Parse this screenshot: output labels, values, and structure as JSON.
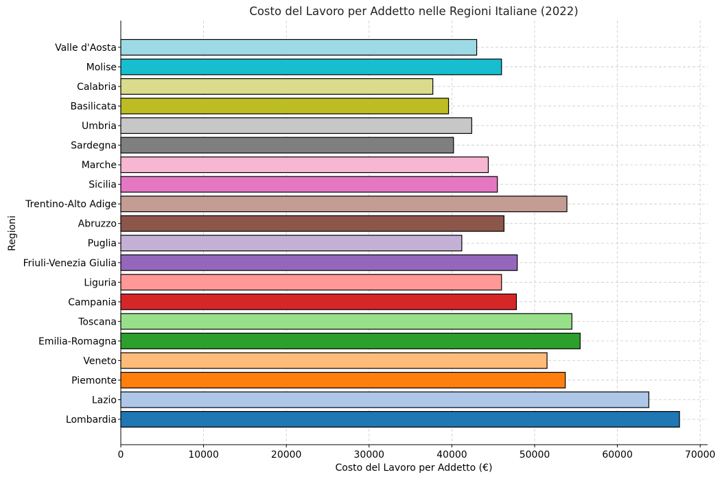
{
  "chart_data": {
    "type": "bar",
    "orientation": "horizontal",
    "title": "Costo del Lavoro per Addetto nelle Regioni Italiane (2022)",
    "xlabel": "Costo del Lavoro per Addetto (€)",
    "ylabel": "Regioni",
    "xlim": [
      0,
      71000
    ],
    "x_ticks": [
      0,
      10000,
      20000,
      30000,
      40000,
      50000,
      60000,
      70000
    ],
    "x_tick_labels": [
      "0",
      "10000",
      "20000",
      "30000",
      "40000",
      "50000",
      "60000",
      "70000"
    ],
    "grid": true,
    "categories": [
      "Lombardia",
      "Lazio",
      "Piemonte",
      "Veneto",
      "Emilia-Romagna",
      "Toscana",
      "Campania",
      "Liguria",
      "Friuli-Venezia Giulia",
      "Puglia",
      "Abruzzo",
      "Trentino-Alto Adige",
      "Sicilia",
      "Marche",
      "Sardegna",
      "Umbria",
      "Basilicata",
      "Calabria",
      "Molise",
      "Valle d'Aosta"
    ],
    "values": [
      67500,
      63800,
      53700,
      51500,
      55500,
      54500,
      47800,
      46000,
      47900,
      41200,
      46300,
      53900,
      45500,
      44400,
      40200,
      42400,
      39600,
      37700,
      46000,
      43000
    ],
    "colors": [
      "#1f77b4",
      "#aec7e8",
      "#ff7f0e",
      "#ffbb78",
      "#2ca02c",
      "#98df8a",
      "#d62728",
      "#ff9896",
      "#9467bd",
      "#c5b0d5",
      "#8c564b",
      "#c49c94",
      "#e377c2",
      "#f7b6d2",
      "#7f7f7f",
      "#c7c7c7",
      "#bcbd22",
      "#dbdb8d",
      "#17becf",
      "#9edae5"
    ]
  }
}
